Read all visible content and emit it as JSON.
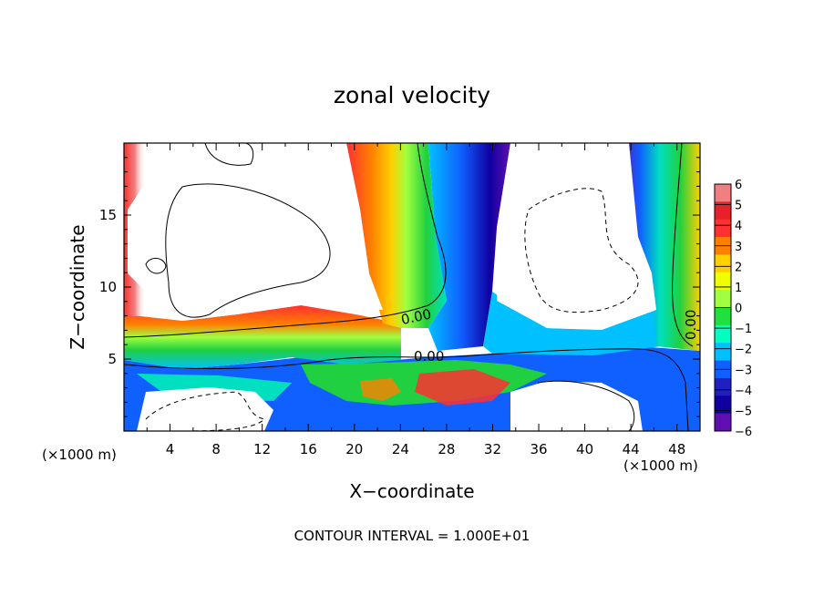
{
  "chart_data": {
    "type": "heatmap",
    "title": "zonal velocity",
    "xlabel": "X−coordinate",
    "ylabel": "Z−coordinate",
    "x_unit_left": "(×1000 m)",
    "x_unit_right": "(×1000 m)",
    "footer": "CONTOUR INTERVAL = 1.000E+01",
    "xlim": [
      0,
      50
    ],
    "ylim": [
      0,
      20
    ],
    "x_ticks": [
      4,
      8,
      12,
      16,
      20,
      24,
      28,
      32,
      36,
      40,
      44,
      48
    ],
    "y_ticks": [
      5,
      10,
      15
    ],
    "colorbar": {
      "levels": [
        6,
        5,
        4,
        3,
        2,
        1,
        0,
        -1,
        -2,
        -3,
        -4,
        -5,
        -6
      ],
      "labels": [
        "6",
        "5",
        "4",
        "3",
        "2",
        "1",
        "0",
        "−1",
        "−2",
        "−3",
        "−4",
        "−5",
        "−6"
      ],
      "colors": [
        "#f08080",
        "#e8202a",
        "#ff3030",
        "#ff8000",
        "#ffd000",
        "#f0ff00",
        "#a0ff40",
        "#20e040",
        "#00ffc0",
        "#00c0ff",
        "#1060ff",
        "#2020c0",
        "#1000a0",
        "#6010b0"
      ]
    },
    "contour_labels": [
      "0.00",
      "0.00",
      "0.00"
    ]
  }
}
